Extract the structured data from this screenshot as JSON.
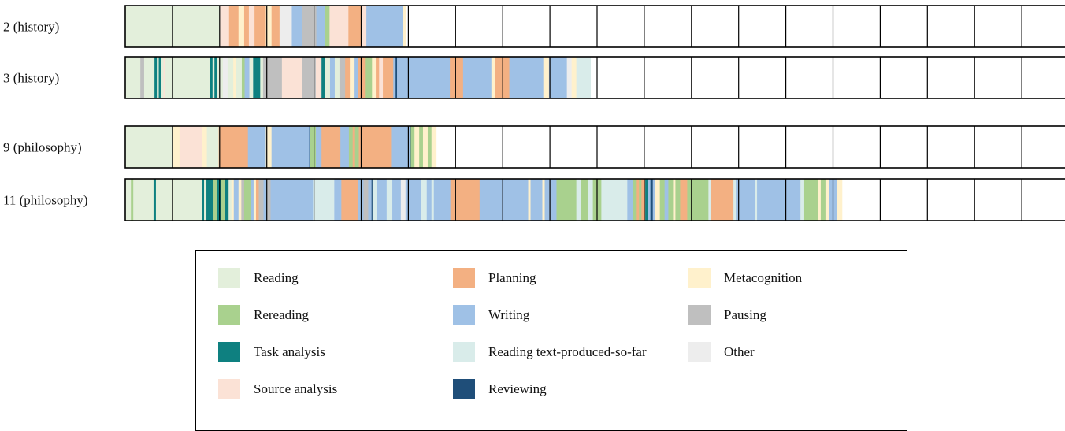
{
  "chart_data": {
    "type": "timeline",
    "x_units": "time blocks",
    "rows": [
      {
        "label": "2 (history)",
        "segments": [
          [
            "reading",
            1.0
          ],
          [
            "reading",
            1.0
          ],
          [
            "source_analysis",
            0.2
          ],
          [
            "planning",
            0.2
          ],
          [
            "metacognition",
            0.12
          ],
          [
            "planning",
            0.1
          ],
          [
            "source_analysis",
            0.12
          ],
          [
            "planning",
            0.24
          ],
          [
            "metacognition",
            0.12
          ],
          [
            "planning",
            0.17
          ],
          [
            "other",
            0.26
          ],
          [
            "writing",
            0.22
          ],
          [
            "pausing",
            0.3
          ],
          [
            "writing",
            0.18
          ],
          [
            "rereading",
            0.1
          ],
          [
            "source_analysis",
            0.4
          ],
          [
            "planning",
            0.28
          ],
          [
            "source_analysis",
            0.1
          ],
          [
            "writing",
            0.78
          ],
          [
            "metacognition",
            0.05
          ]
        ]
      },
      {
        "label": "3 (history)",
        "segments": [
          [
            "reading",
            0.32
          ],
          [
            "pausing",
            0.08
          ],
          [
            "reading",
            0.22
          ],
          [
            "task_analysis",
            0.05
          ],
          [
            "reading",
            0.04
          ],
          [
            "task_analysis",
            0.05
          ],
          [
            "reading",
            0.05
          ],
          [
            "source_analysis",
            0.04
          ],
          [
            "reading",
            0.95
          ],
          [
            "task_analysis",
            0.05
          ],
          [
            "reading",
            0.04
          ],
          [
            "task_analysis",
            0.06
          ],
          [
            "reading",
            0.12
          ],
          [
            "other",
            0.1
          ],
          [
            "reading",
            0.12
          ],
          [
            "metacognition",
            0.06
          ],
          [
            "reading",
            0.12
          ],
          [
            "rereading",
            0.06
          ],
          [
            "writing",
            0.1
          ],
          [
            "reading",
            0.08
          ],
          [
            "task_analysis",
            0.15
          ],
          [
            "reading",
            0.06
          ],
          [
            "pausing",
            0.4
          ],
          [
            "source_analysis",
            0.42
          ],
          [
            "pausing",
            0.3
          ],
          [
            "source_analysis",
            0.12
          ],
          [
            "task_analysis",
            0.08
          ],
          [
            "reading",
            0.1
          ],
          [
            "writing",
            0.1
          ],
          [
            "reading",
            0.1
          ],
          [
            "pausing",
            0.12
          ],
          [
            "planning",
            0.1
          ],
          [
            "metacognition",
            0.1
          ],
          [
            "writing",
            0.07
          ],
          [
            "planning",
            0.15
          ],
          [
            "rereading",
            0.15
          ],
          [
            "metacognition",
            0.08
          ],
          [
            "planning",
            0.07
          ],
          [
            "source_analysis",
            0.08
          ],
          [
            "planning",
            0.22
          ],
          [
            "writing",
            0.05
          ],
          [
            "reviewing",
            0.03
          ],
          [
            "writing",
            1.12
          ],
          [
            "planning",
            0.28
          ],
          [
            "writing",
            0.6
          ],
          [
            "metacognition",
            0.08
          ],
          [
            "planning",
            0.3
          ],
          [
            "writing",
            0.72
          ],
          [
            "metacognition",
            0.12
          ],
          [
            "writing",
            0.38
          ],
          [
            "other",
            0.1
          ],
          [
            "metacognition",
            0.1
          ],
          [
            "reading_text_so_far",
            0.3
          ]
        ]
      },
      {
        "label": "9 (philosophy)",
        "segments": [
          [
            "reading",
            1.0
          ],
          [
            "metacognition",
            0.15
          ],
          [
            "source_analysis",
            0.48
          ],
          [
            "metacognition",
            0.1
          ],
          [
            "reading",
            0.25
          ],
          [
            "planning",
            0.62
          ],
          [
            "writing",
            0.38
          ],
          [
            "metacognition",
            0.12
          ],
          [
            "writing",
            0.8
          ],
          [
            "reviewing",
            0.02
          ],
          [
            "rereading",
            0.12
          ],
          [
            "writing",
            0.12
          ],
          [
            "planning",
            0.4
          ],
          [
            "writing",
            0.18
          ],
          [
            "rereading",
            0.08
          ],
          [
            "planning",
            0.05
          ],
          [
            "rereading",
            0.08
          ],
          [
            "planning",
            0.7
          ],
          [
            "writing",
            0.38
          ],
          [
            "reviewing",
            0.02
          ],
          [
            "rereading",
            0.08
          ],
          [
            "metacognition",
            0.1
          ],
          [
            "rereading",
            0.08
          ],
          [
            "metacognition",
            0.1
          ],
          [
            "rereading",
            0.08
          ],
          [
            "metacognition",
            0.1
          ]
        ]
      },
      {
        "label": "11 (philosophy)",
        "segments": [
          [
            "reading",
            0.12
          ],
          [
            "rereading",
            0.05
          ],
          [
            "reading",
            0.43
          ],
          [
            "task_analysis",
            0.05
          ],
          [
            "reading",
            0.35
          ],
          [
            "metacognition",
            0.02
          ],
          [
            "reading",
            0.6
          ],
          [
            "task_analysis",
            0.05
          ],
          [
            "reading",
            0.05
          ],
          [
            "task_analysis",
            0.15
          ],
          [
            "rereading",
            0.08
          ],
          [
            "task_analysis",
            0.08
          ],
          [
            "rereading",
            0.08
          ],
          [
            "task_analysis",
            0.08
          ],
          [
            "reading",
            0.06
          ],
          [
            "metacognition",
            0.05
          ],
          [
            "writing",
            0.1
          ],
          [
            "metacognition",
            0.06
          ],
          [
            "pausing",
            0.06
          ],
          [
            "rereading",
            0.15
          ],
          [
            "writing",
            0.05
          ],
          [
            "metacognition",
            0.05
          ],
          [
            "planning",
            0.06
          ],
          [
            "pausing",
            0.1
          ],
          [
            "writing",
            0.07
          ],
          [
            "pausing",
            0.08
          ],
          [
            "writing",
            0.9
          ],
          [
            "reading_text_so_far",
            0.45
          ],
          [
            "writing",
            0.15
          ],
          [
            "planning",
            0.35
          ],
          [
            "writing",
            0.12
          ],
          [
            "pausing",
            0.1
          ],
          [
            "writing",
            0.07
          ],
          [
            "reviewing",
            0.02
          ],
          [
            "reading_text_so_far",
            0.1
          ],
          [
            "writing",
            0.2
          ],
          [
            "reading_text_so_far",
            0.12
          ],
          [
            "writing",
            0.18
          ],
          [
            "other",
            0.1
          ],
          [
            "writing",
            0.33
          ],
          [
            "reading_text_so_far",
            0.12
          ],
          [
            "writing",
            0.1
          ],
          [
            "reading_text_so_far",
            0.05
          ],
          [
            "writing",
            0.35
          ],
          [
            "planning",
            0.62
          ],
          [
            "writing",
            1.03
          ],
          [
            "metacognition",
            0.05
          ],
          [
            "writing",
            0.25
          ],
          [
            "metacognition",
            0.05
          ],
          [
            "writing",
            0.25
          ],
          [
            "rereading",
            0.42
          ],
          [
            "reading_text_so_far",
            0.1
          ],
          [
            "rereading",
            0.15
          ],
          [
            "reading_text_so_far",
            0.1
          ],
          [
            "rereading",
            0.18
          ],
          [
            "reading_text_so_far",
            0.55
          ],
          [
            "writing",
            0.12
          ],
          [
            "rereading",
            0.08
          ],
          [
            "planning",
            0.05
          ],
          [
            "rereading",
            0.05
          ],
          [
            "planning",
            0.08
          ],
          [
            "task_analysis",
            0.06
          ],
          [
            "writing",
            0.05
          ],
          [
            "reviewing",
            0.05
          ],
          [
            "writing",
            0.05
          ],
          [
            "metacognition",
            0.1
          ],
          [
            "rereading",
            0.1
          ],
          [
            "writing",
            0.08
          ],
          [
            "rereading",
            0.1
          ],
          [
            "metacognition",
            0.05
          ],
          [
            "rereading",
            0.1
          ],
          [
            "planning",
            0.15
          ],
          [
            "rereading",
            0.45
          ],
          [
            "reading_text_so_far",
            0.05
          ],
          [
            "planning",
            0.48
          ],
          [
            "reading_text_so_far",
            0.05
          ],
          [
            "writing",
            0.4
          ],
          [
            "reading_text_so_far",
            0.05
          ],
          [
            "writing",
            0.92
          ],
          [
            "reading_text_so_far",
            0.08
          ],
          [
            "rereading",
            0.3
          ],
          [
            "metacognition",
            0.05
          ],
          [
            "rereading",
            0.1
          ],
          [
            "metacognition",
            0.08
          ],
          [
            "writing",
            0.17
          ],
          [
            "metacognition",
            0.1
          ]
        ]
      }
    ],
    "legend": [
      {
        "key": "reading",
        "label": "Reading",
        "color": "#e3efdb"
      },
      {
        "key": "rereading",
        "label": "Rereading",
        "color": "#a9d18e"
      },
      {
        "key": "task_analysis",
        "label": "Task analysis",
        "color": "#0e8080"
      },
      {
        "key": "source_analysis",
        "label": "Source analysis",
        "color": "#fbe2d6"
      },
      {
        "key": "planning",
        "label": "Planning",
        "color": "#f3b082"
      },
      {
        "key": "writing",
        "label": "Writing",
        "color": "#9fc1e6"
      },
      {
        "key": "reading_text_so_far",
        "label": "Reading text-produced-so-far",
        "color": "#d9ecea"
      },
      {
        "key": "reviewing",
        "label": "Reviewing",
        "color": "#1f4e79"
      },
      {
        "key": "metacognition",
        "label": "Metacognition",
        "color": "#fff1cc"
      },
      {
        "key": "pausing",
        "label": "Pausing",
        "color": "#bfbfbf"
      },
      {
        "key": "other",
        "label": "Other",
        "color": "#ededed"
      }
    ],
    "legend_placement": "bottom-center",
    "grid": true
  }
}
